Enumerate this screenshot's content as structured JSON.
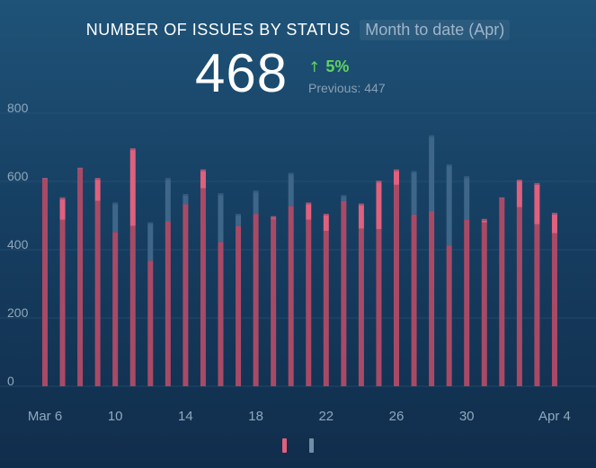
{
  "header": {
    "title": "NUMBER OF ISSUES BY STATUS",
    "period": "Month to date (Apr)"
  },
  "kpi": {
    "value": "468",
    "change_arrow": "↑",
    "change": "5%",
    "previous": "Previous: 447"
  },
  "colors": {
    "series_a": "#e0607e",
    "series_b": "#3e6689",
    "overlap": "#a84a66",
    "grid": "#2f5a7c",
    "axis_text": "#8fa8bd",
    "change_up": "#5fd35f"
  },
  "chart_data": {
    "type": "bar",
    "title": "NUMBER OF ISSUES BY STATUS",
    "x": [
      "Mar 6",
      "Mar 7",
      "Mar 8",
      "Mar 9",
      "Mar 10",
      "Mar 11",
      "Mar 12",
      "Mar 13",
      "Mar 14",
      "Mar 15",
      "Mar 16",
      "Mar 17",
      "Mar 18",
      "Mar 19",
      "Mar 20",
      "Mar 21",
      "Mar 22",
      "Mar 23",
      "Mar 24",
      "Mar 25",
      "Mar 26",
      "Mar 27",
      "Mar 28",
      "Mar 29",
      "Mar 30",
      "Mar 31",
      "Apr 1",
      "Apr 2",
      "Apr 3",
      "Apr 4"
    ],
    "series": [
      {
        "values": [
          605,
          548,
          635,
          605,
          452,
          692,
          368,
          483,
          533,
          630,
          423,
          470,
          505,
          493,
          528,
          533,
          500,
          543,
          530,
          597,
          630,
          503,
          513,
          412,
          488,
          485,
          548,
          600,
          590,
          503
        ]
      },
      {
        "values": [
          605,
          488,
          635,
          543,
          533,
          470,
          475,
          605,
          558,
          580,
          560,
          500,
          568,
          490,
          620,
          488,
          455,
          555,
          462,
          460,
          590,
          625,
          730,
          645,
          610,
          480,
          548,
          525,
          475,
          448
        ]
      }
    ],
    "x_ticks": [
      {
        "index": 0,
        "label": "Mar 6"
      },
      {
        "index": 4,
        "label": "10"
      },
      {
        "index": 8,
        "label": "14"
      },
      {
        "index": 12,
        "label": "18"
      },
      {
        "index": 16,
        "label": "22"
      },
      {
        "index": 20,
        "label": "26"
      },
      {
        "index": 24,
        "label": "30"
      },
      {
        "index": 29,
        "label": "Apr 4"
      }
    ],
    "y_ticks": [
      0,
      200,
      400,
      600,
      800
    ],
    "ylim": [
      0,
      800
    ],
    "grid": true,
    "legend_position": "bottom-center"
  }
}
